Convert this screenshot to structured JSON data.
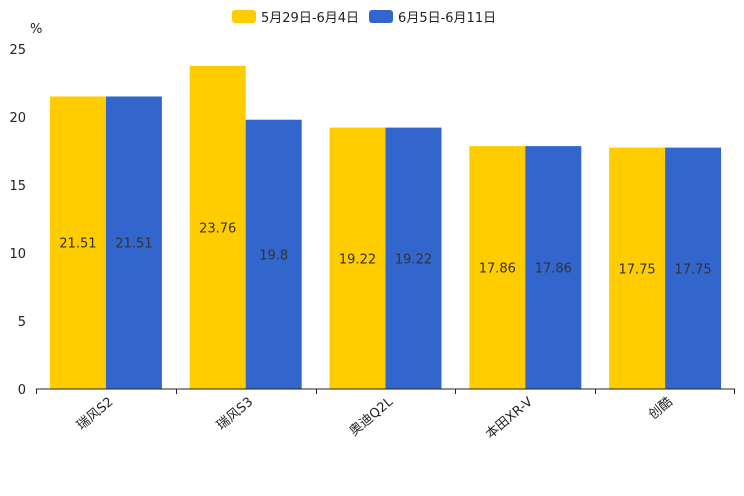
{
  "chart_data": {
    "type": "bar",
    "ylabel": "%",
    "ylim": [
      0,
      25
    ],
    "yticks": [
      "0",
      "5",
      "10",
      "15",
      "20",
      "25"
    ],
    "categories": [
      "瑞风S2",
      "瑞风S3",
      "奥迪Q2L",
      "本田XR-V",
      "创酷"
    ],
    "series": [
      {
        "name": "5月29日-6月4日",
        "color": "#ffcc00",
        "values": [
          21.51,
          23.76,
          19.22,
          17.86,
          17.75
        ],
        "labels": [
          "21.51",
          "23.76",
          "19.22",
          "17.86",
          "17.75"
        ]
      },
      {
        "name": "6月5日-6月11日",
        "color": "#3366cc",
        "values": [
          21.51,
          19.8,
          19.22,
          17.86,
          17.75
        ],
        "labels": [
          "21.51",
          "19.8",
          "19.22",
          "17.86",
          "17.75"
        ]
      }
    ],
    "legend_position": "top-center",
    "grid": false
  }
}
